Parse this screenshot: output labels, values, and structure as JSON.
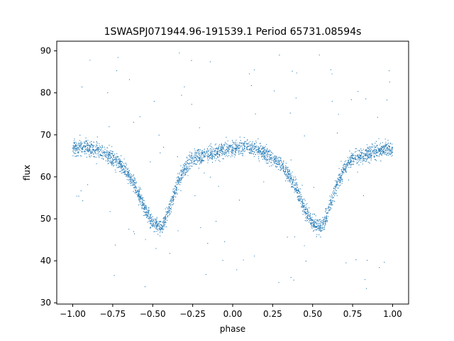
{
  "chart_data": {
    "type": "scatter",
    "title": "1SWASPJ071944.96-191539.1 Period 65731.08594s",
    "xlabel": "phase",
    "ylabel": "flux",
    "xlim": [
      -1.1,
      1.1
    ],
    "ylim": [
      29.7,
      92.3
    ],
    "xticks": [
      -1.0,
      -0.75,
      -0.5,
      -0.25,
      0.0,
      0.25,
      0.5,
      0.75,
      1.0
    ],
    "xtick_labels": [
      "−1.00",
      "−0.75",
      "−0.50",
      "−0.25",
      "0.00",
      "0.25",
      "0.50",
      "0.75",
      "1.00"
    ],
    "yticks": [
      30,
      40,
      50,
      60,
      70,
      80,
      90
    ],
    "ytick_labels": [
      "30",
      "40",
      "50",
      "60",
      "70",
      "80",
      "90"
    ],
    "grid": false,
    "legend": "none",
    "marker_color": "#1f77b4",
    "light_curve_profile": {
      "phase": [
        -0.45,
        -0.44,
        -0.4,
        -0.35,
        -0.3,
        -0.25,
        -0.2,
        -0.15,
        -0.1,
        -0.05,
        0.0,
        0.05,
        0.1,
        0.15,
        0.2,
        0.25,
        0.3,
        0.35,
        0.4,
        0.45,
        0.5,
        0.55,
        0.56
      ],
      "flux": [
        48,
        48,
        52,
        58,
        62,
        64.5,
        65,
        65.5,
        66,
        66.5,
        66.8,
        67,
        67,
        66.5,
        65.5,
        64.5,
        63,
        60.5,
        57,
        52.5,
        49,
        48,
        48
      ]
    },
    "primary_minimum": {
      "phase": [
        -0.45,
        0.55
      ],
      "flux": 48
    },
    "maximum_flux": 67,
    "outlier_flux_range": [
      32,
      90
    ]
  }
}
